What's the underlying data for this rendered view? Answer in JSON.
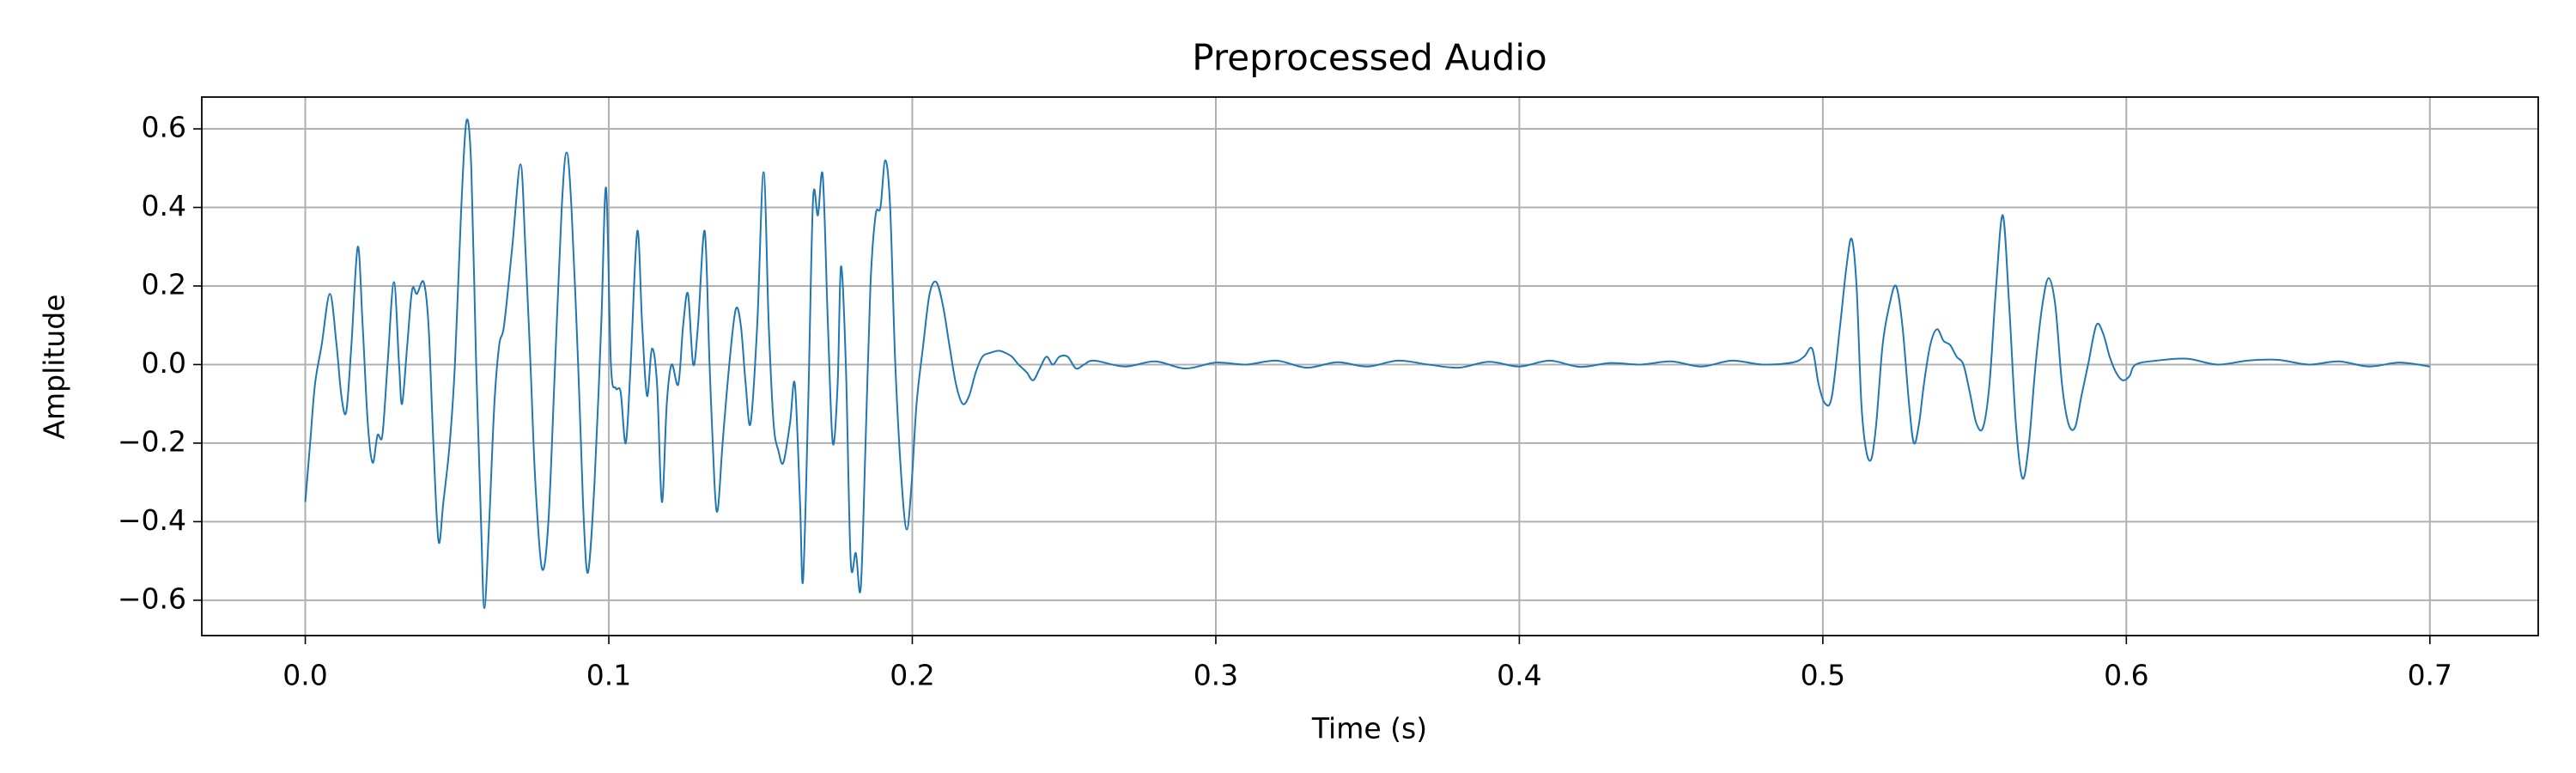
{
  "chart_data": {
    "type": "line",
    "title": "Preprocessed Audio",
    "x_label": "Time (s)",
    "y_label": "Amplitude",
    "color": "#1f77b4",
    "grid": true,
    "xlim": [
      -0.0341,
      0.7357
    ],
    "ylim": [
      -0.69,
      0.681
    ],
    "xticks": [
      {
        "value": 0,
        "label": "0.0"
      },
      0.1,
      0.2,
      0.3,
      0.4,
      0.5,
      0.6,
      0.7
    ],
    "yticks": [
      {
        "value": -0.6,
        "label": "−0.6"
      },
      {
        "value": -0.4,
        "label": "−0.4"
      },
      {
        "value": -0.2,
        "label": "−0.2"
      },
      {
        "value": 0,
        "label": "0.0"
      },
      0.2,
      0.4,
      0.6
    ],
    "x": [
      0,
      0.0016,
      0.0032,
      0.0054,
      0.0081,
      0.0103,
      0.0119,
      0.0135,
      0.0152,
      0.0173,
      0.0189,
      0.0206,
      0.0222,
      0.0238,
      0.0254,
      0.0271,
      0.0292,
      0.0309,
      0.0319,
      0.0336,
      0.0352,
      0.0368,
      0.039,
      0.0406,
      0.0422,
      0.0439,
      0.0455,
      0.0476,
      0.0493,
      0.0514,
      0.0531,
      0.0547,
      0.0563,
      0.0579,
      0.059,
      0.0606,
      0.0623,
      0.0639,
      0.0655,
      0.0682,
      0.0709,
      0.0725,
      0.0742,
      0.0758,
      0.078,
      0.0801,
      0.0823,
      0.0845,
      0.0861,
      0.0877,
      0.0899,
      0.0915,
      0.0931,
      0.0953,
      0.0975,
      0.0991,
      0.1007,
      0.1023,
      0.1039,
      0.1056,
      0.1072,
      0.1094,
      0.111,
      0.1126,
      0.1142,
      0.1159,
      0.1175,
      0.1191,
      0.1207,
      0.1229,
      0.1245,
      0.1261,
      0.1278,
      0.1294,
      0.1316,
      0.1332,
      0.1348,
      0.1359,
      0.1375,
      0.1397,
      0.1418,
      0.1435,
      0.1451,
      0.1467,
      0.1489,
      0.151,
      0.1527,
      0.1543,
      0.1559,
      0.1575,
      0.1597,
      0.1613,
      0.163,
      0.164,
      0.1657,
      0.1673,
      0.1689,
      0.1705,
      0.1722,
      0.1738,
      0.1754,
      0.1765,
      0.1781,
      0.1797,
      0.1814,
      0.183,
      0.1846,
      0.1862,
      0.1879,
      0.1895,
      0.1911,
      0.1927,
      0.1944,
      0.1965,
      0.1982,
      0.1998,
      0.2014,
      0.2036,
      0.2057,
      0.2079,
      0.2101,
      0.2122,
      0.2144,
      0.2166,
      0.2187,
      0.2209,
      0.2231,
      0.2258,
      0.2285,
      0.2306,
      0.2328,
      0.235,
      0.2377,
      0.2398,
      0.242,
      0.2442,
      0.2463,
      0.2485,
      0.2512,
      0.2539,
      0.2566,
      0.26,
      0.27,
      0.28,
      0.29,
      0.3,
      0.31,
      0.32,
      0.33,
      0.34,
      0.35,
      0.36,
      0.37,
      0.38,
      0.39,
      0.4,
      0.41,
      0.42,
      0.43,
      0.44,
      0.45,
      0.46,
      0.47,
      0.48,
      0.49,
      0.4938,
      0.4965,
      0.4986,
      0.5008,
      0.503,
      0.5057,
      0.5078,
      0.5095,
      0.5111,
      0.5127,
      0.5143,
      0.516,
      0.5176,
      0.5197,
      0.5219,
      0.5241,
      0.5262,
      0.5284,
      0.53,
      0.5317,
      0.5333,
      0.5354,
      0.5376,
      0.5398,
      0.5419,
      0.5441,
      0.5463,
      0.5484,
      0.5506,
      0.5528,
      0.5549,
      0.5571,
      0.5593,
      0.5614,
      0.5636,
      0.5658,
      0.5679,
      0.5701,
      0.5723,
      0.5744,
      0.5766,
      0.5788,
      0.5809,
      0.5831,
      0.5852,
      0.5874,
      0.5901,
      0.5923,
      0.5945,
      0.5966,
      0.5988,
      0.601,
      0.6031,
      0.61,
      0.62,
      0.63,
      0.64,
      0.65,
      0.66,
      0.67,
      0.68,
      0.69,
      0.7
    ],
    "values": [
      -0.35,
      -0.2,
      -0.05,
      0.05,
      0.18,
      0.05,
      -0.08,
      -0.12,
      0.05,
      0.3,
      0.1,
      -0.15,
      -0.25,
      -0.18,
      -0.18,
      0.0,
      0.21,
      0.0,
      -0.1,
      0.05,
      0.19,
      0.18,
      0.21,
      0.1,
      -0.2,
      -0.45,
      -0.35,
      -0.2,
      0.0,
      0.4,
      0.62,
      0.5,
      0.0,
      -0.4,
      -0.62,
      -0.4,
      -0.1,
      0.05,
      0.1,
      0.3,
      0.51,
      0.3,
      0.0,
      -0.3,
      -0.52,
      -0.4,
      0.0,
      0.4,
      0.54,
      0.4,
      0.0,
      -0.35,
      -0.53,
      -0.3,
      0.1,
      0.45,
      0.0,
      -0.06,
      -0.07,
      -0.2,
      0.0,
      0.34,
      0.1,
      -0.08,
      0.04,
      -0.05,
      -0.35,
      -0.1,
      0.0,
      -0.05,
      0.1,
      0.18,
      0.0,
      0.1,
      0.34,
      0.0,
      -0.3,
      -0.37,
      -0.2,
      0.0,
      0.14,
      0.1,
      -0.05,
      -0.15,
      0.1,
      0.49,
      0.1,
      -0.15,
      -0.22,
      -0.25,
      -0.15,
      -0.05,
      -0.35,
      -0.55,
      -0.1,
      0.42,
      0.38,
      0.48,
      0.1,
      -0.2,
      -0.05,
      0.25,
      0.0,
      -0.5,
      -0.48,
      -0.57,
      -0.2,
      0.2,
      0.38,
      0.4,
      0.52,
      0.4,
      0.0,
      -0.3,
      -0.42,
      -0.3,
      -0.1,
      0.05,
      0.18,
      0.21,
      0.15,
      0.05,
      -0.05,
      -0.1,
      -0.08,
      -0.02,
      0.02,
      0.03,
      0.035,
      0.03,
      0.02,
      0.0,
      -0.02,
      -0.04,
      -0.01,
      0.02,
      0.0,
      0.02,
      0.02,
      -0.01,
      0.0,
      0.01,
      -0.005,
      0.008,
      -0.01,
      0.005,
      0.0,
      0.01,
      -0.008,
      0.006,
      -0.005,
      0.01,
      0.0,
      -0.008,
      0.007,
      -0.005,
      0.01,
      -0.006,
      0.004,
      0.0,
      0.008,
      -0.005,
      0.01,
      0.0,
      0.005,
      0.02,
      0.04,
      -0.05,
      -0.1,
      -0.08,
      0.1,
      0.25,
      0.32,
      0.2,
      -0.1,
      -0.22,
      -0.24,
      -0.15,
      0.05,
      0.15,
      0.2,
      0.1,
      -0.1,
      -0.2,
      -0.15,
      -0.05,
      0.05,
      0.09,
      0.06,
      0.05,
      0.02,
      0.0,
      -0.07,
      -0.15,
      -0.16,
      -0.05,
      0.2,
      0.38,
      0.15,
      -0.15,
      -0.29,
      -0.2,
      0.0,
      0.15,
      0.22,
      0.15,
      -0.05,
      -0.15,
      -0.16,
      -0.08,
      0.0,
      0.1,
      0.08,
      0.02,
      -0.02,
      -0.04,
      -0.03,
      0.0,
      0.01,
      0.015,
      0.0,
      0.01,
      0.012,
      0.0,
      0.008,
      -0.005,
      0.005,
      -0.005
    ]
  }
}
